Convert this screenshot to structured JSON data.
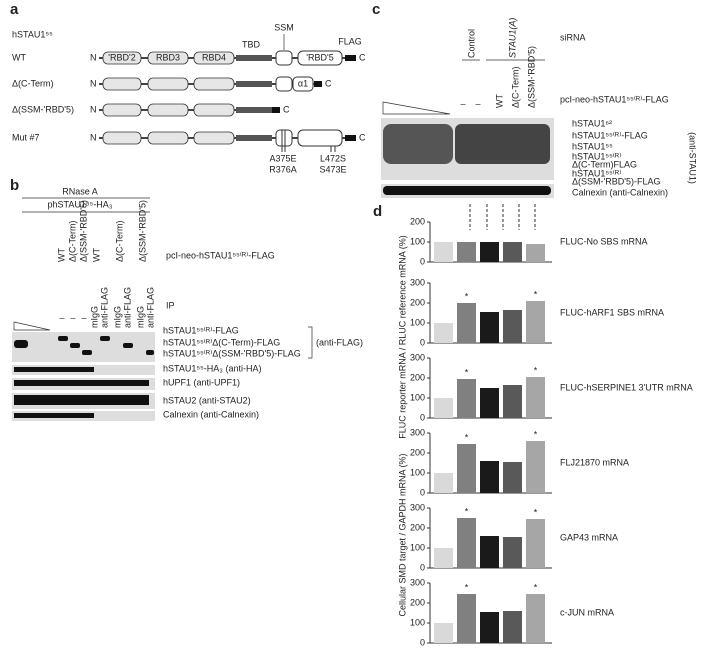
{
  "panel_a": {
    "label": "a",
    "protein": "hSTAU1⁵⁵",
    "rows": [
      "WT",
      "Δ(C-Term)",
      "Δ(SSM-'RBD'5)",
      "Mut #7"
    ],
    "domains": [
      "'RBD'2",
      "RBD3",
      "RBD4",
      "TBD",
      "SSM",
      "'RBD'5",
      "FLAG",
      "α1"
    ],
    "n_term": "N",
    "c_term": "C",
    "mutations": [
      "A375E",
      "R376A",
      "L472S",
      "S473E"
    ]
  },
  "panel_b": {
    "label": "b",
    "treatment": "RNase A",
    "plasmid": "phSTAU1⁵⁵-HA₃",
    "lanes": [
      "WT",
      "Δ(C-Term)",
      "Δ(SSM-'RBD'5)",
      "WT",
      "Δ(C-Term)",
      "Δ(SSM-'RBD'5)"
    ],
    "construct": "pcI-neo-hSTAU1⁵⁵⁽ᴿ⁾-FLAG",
    "ip": "IP",
    "ip_lanes": [
      "mIgG",
      "anti-FLAG"
    ],
    "dash": "–",
    "bands": [
      "hSTAU1⁵⁵⁽ᴿ⁾-FLAG",
      "hSTAU1⁵⁵⁽ᴿ⁾Δ(C-Term)-FLAG",
      "hSTAU1⁵⁵⁽ᴿ⁾Δ(SSM-'RBD'5)-FLAG",
      "(anti-FLAG)",
      "hSTAU1⁵⁵-HA₃ (anti-HA)",
      "hUPF1 (anti-UPF1)",
      "hSTAU2 (anti-STAU2)",
      "Calnexin (anti-Calnexin)"
    ]
  },
  "panel_c": {
    "label": "c",
    "sirna": "siRNA",
    "control": "Control",
    "stau": "STAU1(A)",
    "construct": "pcI-neo-hSTAU1⁵⁵⁽ᴿ⁾-FLAG",
    "lanes": [
      "WT",
      "Δ(C-Term)",
      "Δ(SSM-'RBD'5)"
    ],
    "dash": "–",
    "bands": [
      "hSTAU1⁶²",
      "hSTAU1⁵⁵⁽ᴿ⁾-FLAG",
      "hSTAU1⁵⁵",
      "hSTAU1⁵⁵⁽ᴿ⁾",
      "Δ(C-Term)FLAG",
      "hSTAU1⁵⁵⁽ᴿ⁾",
      "Δ(SSM-'RBD'5)-FLAG"
    ],
    "antibody": "(anti-STAU1)",
    "loading": "Calnexin (anti-Calnexin)"
  },
  "panel_d": {
    "label": "d",
    "y_labels": [
      "FLUC reporter  mRNA / RLUC reference  mRNA (%)",
      "Cellular SMD target / GAPDH mRNA (%)"
    ]
  },
  "chart_data": [
    {
      "type": "bar",
      "title": "FLUC-No  SBS mRNA",
      "values": [
        100,
        100,
        100,
        100,
        90
      ],
      "colors": [
        "#d9d9d9",
        "#808080",
        "#1a1a1a",
        "#595959",
        "#a6a6a6"
      ],
      "markers": [
        null,
        null,
        null,
        null,
        null
      ],
      "ylim": [
        0,
        200
      ],
      "yticks": [
        0,
        100,
        200
      ]
    },
    {
      "type": "bar",
      "title": "FLUC-hARF1  SBS mRNA",
      "values": [
        100,
        200,
        155,
        165,
        210
      ],
      "colors": [
        "#d9d9d9",
        "#808080",
        "#1a1a1a",
        "#595959",
        "#a6a6a6"
      ],
      "markers": [
        null,
        "*",
        null,
        null,
        "*"
      ],
      "ylim": [
        0,
        300
      ],
      "yticks": [
        0,
        100,
        200,
        300
      ]
    },
    {
      "type": "bar",
      "title": "FLUC-hSERPINE1  3'UTR  mRNA",
      "values": [
        100,
        195,
        150,
        165,
        205
      ],
      "colors": [
        "#d9d9d9",
        "#808080",
        "#1a1a1a",
        "#595959",
        "#a6a6a6"
      ],
      "markers": [
        null,
        "*",
        null,
        null,
        "*"
      ],
      "ylim": [
        0,
        300
      ],
      "yticks": [
        0,
        100,
        200,
        300
      ]
    },
    {
      "type": "bar",
      "title": "FLJ21870 mRNA",
      "values": [
        100,
        245,
        160,
        155,
        260
      ],
      "colors": [
        "#d9d9d9",
        "#808080",
        "#1a1a1a",
        "#595959",
        "#a6a6a6"
      ],
      "markers": [
        null,
        "*",
        null,
        null,
        "*"
      ],
      "ylim": [
        0,
        300
      ],
      "yticks": [
        0,
        100,
        200,
        300
      ]
    },
    {
      "type": "bar",
      "title": "GAP43 mRNA",
      "values": [
        100,
        250,
        160,
        155,
        245
      ],
      "colors": [
        "#d9d9d9",
        "#808080",
        "#1a1a1a",
        "#595959",
        "#a6a6a6"
      ],
      "markers": [
        null,
        "*",
        null,
        null,
        "*"
      ],
      "ylim": [
        0,
        300
      ],
      "yticks": [
        0,
        100,
        200,
        300
      ]
    },
    {
      "type": "bar",
      "title": "c-JUN mRNA",
      "values": [
        100,
        245,
        155,
        160,
        245
      ],
      "colors": [
        "#d9d9d9",
        "#808080",
        "#1a1a1a",
        "#595959",
        "#a6a6a6"
      ],
      "markers": [
        null,
        "*",
        null,
        null,
        "*"
      ],
      "ylim": [
        0,
        300
      ],
      "yticks": [
        0,
        100,
        200,
        300
      ]
    }
  ]
}
